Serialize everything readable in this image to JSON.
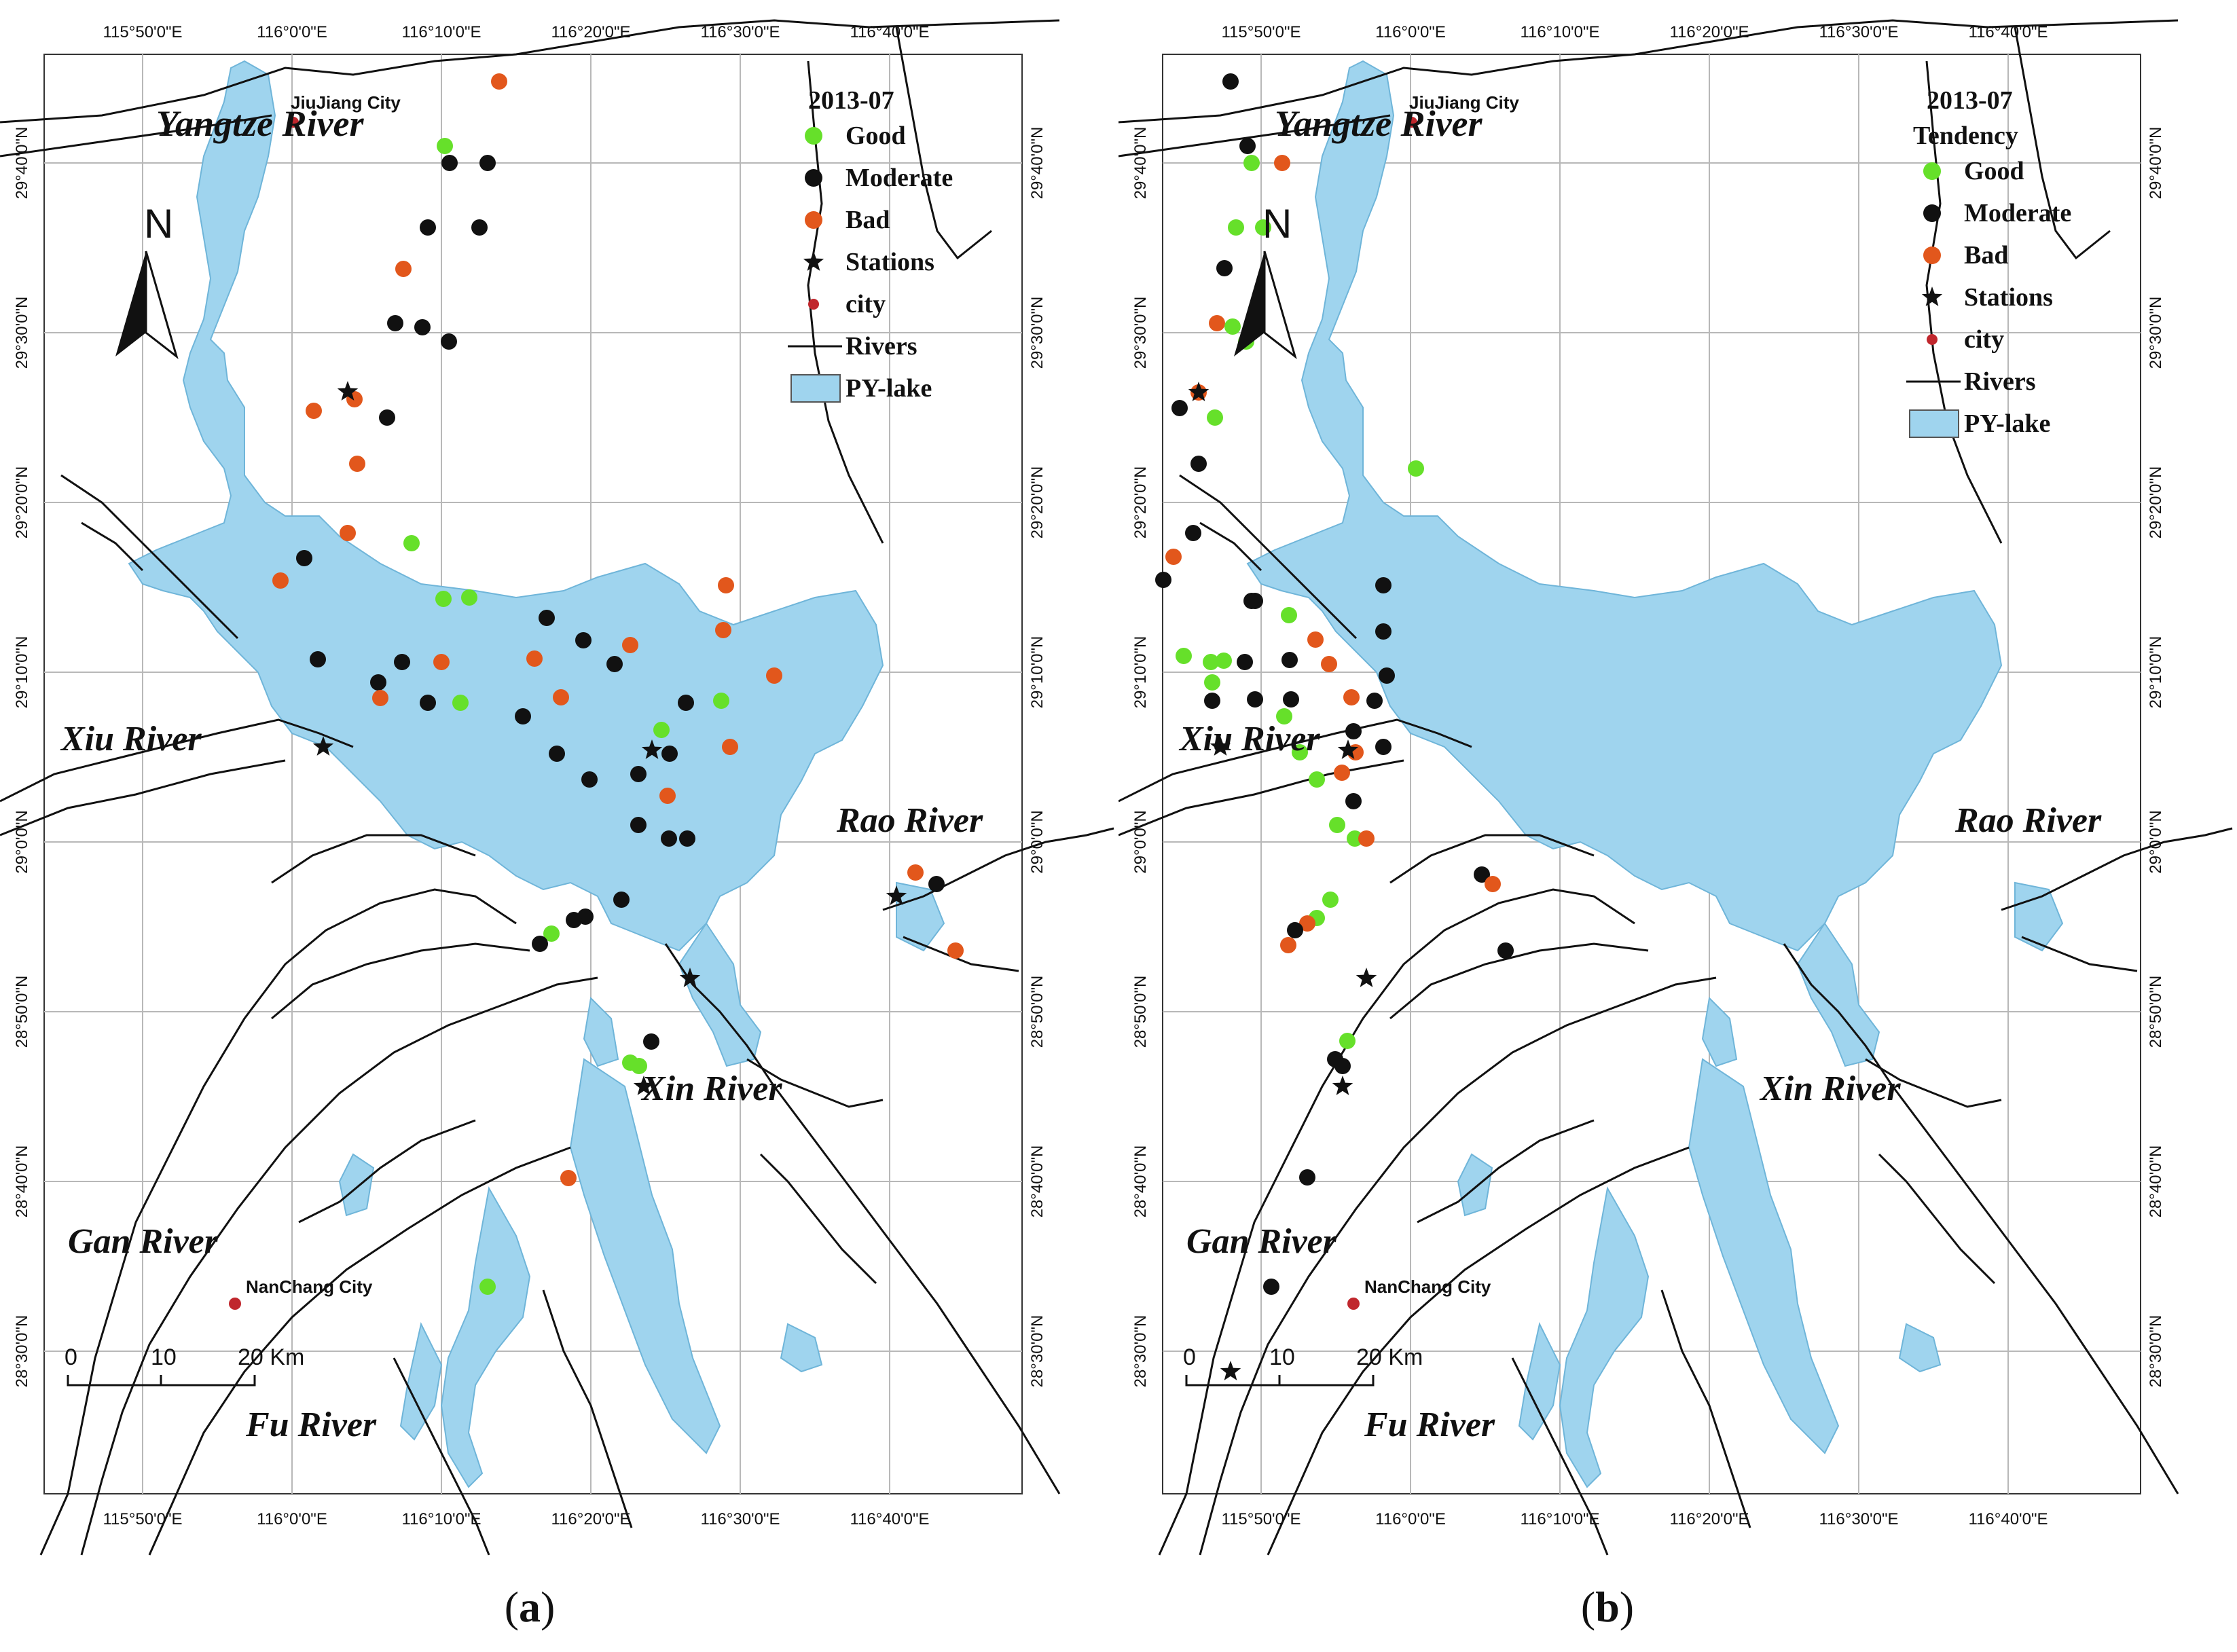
{
  "figure": {
    "panels": [
      {
        "id": "a",
        "caption_label": "a",
        "legend": {
          "title": "2013-07",
          "subtitle": "",
          "items": [
            {
              "label": "Good",
              "symbol": "dot",
              "color": "#66e02a"
            },
            {
              "label": "Moderate",
              "symbol": "dot",
              "color": "#111111"
            },
            {
              "label": "Bad",
              "symbol": "dot",
              "color": "#e2571c"
            },
            {
              "label": "Stations",
              "symbol": "star",
              "color": "#111111"
            },
            {
              "label": "city",
              "symbol": "small-dot",
              "color": "#c0272d"
            },
            {
              "label": "Rivers",
              "symbol": "line",
              "color": "#111111"
            },
            {
              "label": "PY-lake",
              "symbol": "box",
              "color": "#9fd4ee"
            }
          ]
        }
      },
      {
        "id": "b",
        "caption_label": "b",
        "legend": {
          "title": "2013-07",
          "subtitle": "Tendency",
          "items": [
            {
              "label": "Good",
              "symbol": "dot",
              "color": "#66e02a"
            },
            {
              "label": "Moderate",
              "symbol": "dot",
              "color": "#111111"
            },
            {
              "label": "Bad",
              "symbol": "dot",
              "color": "#e2571c"
            },
            {
              "label": "Stations",
              "symbol": "star",
              "color": "#111111"
            },
            {
              "label": "city",
              "symbol": "small-dot",
              "color": "#c0272d"
            },
            {
              "label": "Rivers",
              "symbol": "line",
              "color": "#111111"
            },
            {
              "label": "PY-lake",
              "symbol": "box",
              "color": "#9fd4ee"
            }
          ]
        }
      }
    ],
    "rivers": {
      "yangtze": "Yangtze River",
      "xiu": "Xiu River",
      "gan": "Gan River",
      "fu": "Fu River",
      "xin": "Xin River",
      "rao": "Rao River"
    },
    "cities": {
      "jiujiang": "JiuJiang City",
      "nanchang": "NanChang City"
    },
    "north_label": "N",
    "scale_bar": [
      "0",
      "10",
      "20 Km"
    ],
    "axes": {
      "top": [
        "115°50'0\"E",
        "116°0'0\"E",
        "116°10'0\"E",
        "116°20'0\"E",
        "116°30'0\"E",
        "116°40'0\"E"
      ],
      "bottom": [
        "115°50'0\"E",
        "116°0'0\"E",
        "116°10'0\"E",
        "116°20'0\"E",
        "116°30'0\"E",
        "116°40'0\"E"
      ],
      "left": [
        "29°40'0\"N",
        "29°30'0\"N",
        "29°20'0\"N",
        "29°10'0\"N",
        "29°0'0\"N",
        "28°50'0\"N",
        "28°40'0\"N",
        "28°30'0\"N"
      ],
      "right": [
        "29°40'0\"N",
        "29°30'0\"N",
        "29°20'0\"N",
        "29°10'0\"N",
        "29°0'0\"N",
        "28°50'0\"N",
        "28°40'0\"N",
        "28°30'0\"N"
      ]
    },
    "colors": {
      "lake": "#9fd4ee",
      "good": "#66e02a",
      "moderate": "#111111",
      "bad": "#e2571c",
      "city": "#c0272d"
    }
  }
}
